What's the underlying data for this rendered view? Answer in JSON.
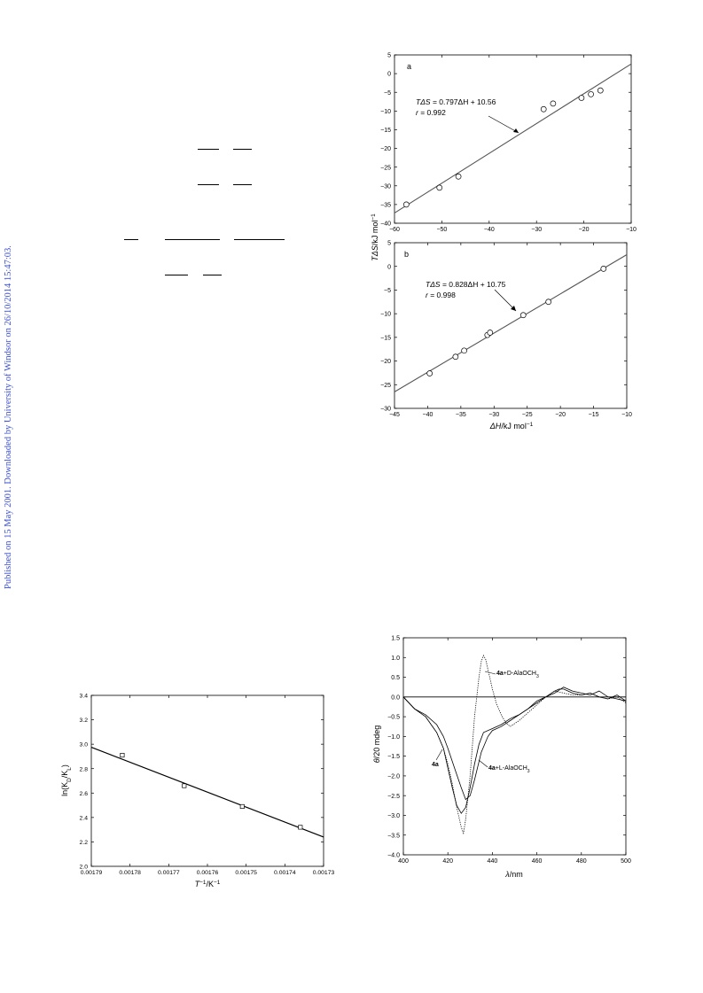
{
  "side_note": "Published on 15 May 2001. Downloaded by University of Windsor on 26/10/2014 15:47:03.",
  "chart_data": [
    {
      "id": "fig-a",
      "type": "scatter",
      "panel_label": "a",
      "xlabel": "",
      "ylabel_parts": [
        "TΔS",
        "/kJ mol",
        "−1"
      ],
      "xlim": [
        -60,
        -10
      ],
      "ylim": [
        -40,
        5
      ],
      "xticks": [
        -60,
        -50,
        -40,
        -30,
        -20,
        -10
      ],
      "yticks": [
        5,
        0,
        -5,
        -10,
        -15,
        -20,
        -25,
        -30,
        -35,
        -40
      ],
      "points": [
        {
          "x": -57.5,
          "y": -35
        },
        {
          "x": -50.5,
          "y": -30.5
        },
        {
          "x": -46.5,
          "y": -27.5
        },
        {
          "x": -28.5,
          "y": -9.5
        },
        {
          "x": -26.5,
          "y": -8
        },
        {
          "x": -20.5,
          "y": -6.5
        },
        {
          "x": -18.5,
          "y": -5.5
        },
        {
          "x": -16.5,
          "y": -4.5
        }
      ],
      "fit": {
        "slope": 0.797,
        "intercept": 10.56
      },
      "equation": {
        "lhs": "TΔS",
        "rhs": " = 0.797ΔH + 10.56",
        "r_label": "r",
        "r_value": " = 0.992"
      }
    },
    {
      "id": "fig-b",
      "type": "scatter",
      "panel_label": "b",
      "xlabel_parts": [
        "ΔH",
        "/kJ mol",
        "−1"
      ],
      "xlim": [
        -45,
        -10
      ],
      "ylim": [
        -30,
        5
      ],
      "xticks": [
        -45,
        -40,
        -35,
        -30,
        -25,
        -20,
        -15,
        -10
      ],
      "yticks": [
        5,
        0,
        -5,
        -10,
        -15,
        -20,
        -25,
        -30
      ],
      "points": [
        {
          "x": -39.7,
          "y": -22.6
        },
        {
          "x": -35.8,
          "y": -19.1
        },
        {
          "x": -34.5,
          "y": -17.8
        },
        {
          "x": -31.0,
          "y": -14.5
        },
        {
          "x": -30.6,
          "y": -14.0
        },
        {
          "x": -25.6,
          "y": -10.3
        },
        {
          "x": -21.8,
          "y": -7.5
        },
        {
          "x": -13.5,
          "y": -0.5
        }
      ],
      "fit": {
        "slope": 0.828,
        "intercept": 10.75
      },
      "equation": {
        "lhs": "TΔS",
        "rhs": " = 0.828ΔH + 10.75",
        "r_label": "r",
        "r_value": " = 0.998"
      }
    },
    {
      "id": "fig-c",
      "type": "scatter",
      "xlabel_parts": [
        "T",
        "−1",
        "/K",
        "−1"
      ],
      "ylabel_parts": [
        "ln(K",
        "D",
        "/K",
        "L",
        ")"
      ],
      "xlim": [
        0.00179,
        0.00173
      ],
      "ylim": [
        2.0,
        3.4
      ],
      "xticks": [
        0.00179,
        0.00178,
        0.00177,
        0.00176,
        0.00175,
        0.00174,
        0.00173
      ],
      "xtick_labels": [
        "0.00179",
        "0.00178",
        "0.00177",
        "0.00176",
        "0.00175",
        "0.00174",
        "0.00173"
      ],
      "yticks": [
        2.0,
        2.2,
        2.4,
        2.6,
        2.8,
        3.0,
        3.2,
        3.4
      ],
      "ytick_labels": [
        "2.0",
        "2.2",
        "2.4",
        "2.6",
        "2.8",
        "3.0",
        "3.2",
        "3.4"
      ],
      "points": [
        {
          "x": 0.001782,
          "y": 2.91
        },
        {
          "x": 0.001766,
          "y": 2.66
        },
        {
          "x": 0.001751,
          "y": 2.49
        },
        {
          "x": 0.001736,
          "y": 2.32
        }
      ],
      "fit_line": [
        {
          "x": 0.00179,
          "y": 2.975
        },
        {
          "x": 0.00173,
          "y": 2.24
        }
      ]
    },
    {
      "id": "fig-d",
      "type": "line",
      "xlabel_parts": [
        "λ",
        "/nm"
      ],
      "ylabel_parts": [
        "θ",
        "/20 mdeg"
      ],
      "xlim": [
        400,
        500
      ],
      "ylim": [
        -4.0,
        1.5
      ],
      "xticks": [
        400,
        420,
        440,
        460,
        480,
        500
      ],
      "yticks": [
        1.5,
        1.0,
        0.5,
        0.0,
        -0.5,
        -1.0,
        -1.5,
        -2.0,
        -2.5,
        -3.0,
        -3.5,
        -4.0
      ],
      "ytick_labels": [
        "1.5",
        "1.0",
        "0.5",
        "0.0",
        "−0.5",
        "−1.0",
        "−1.5",
        "−2.0",
        "−2.5",
        "−3.0",
        "−3.5",
        "−4.0"
      ],
      "series": [
        {
          "name": "4a",
          "style": "solid",
          "x": [
            400,
            405,
            410,
            415,
            418,
            420,
            422,
            424,
            426,
            428,
            430,
            432,
            434,
            436,
            440,
            444,
            448,
            452,
            456,
            460,
            464,
            468,
            470,
            472,
            476,
            480,
            484,
            488,
            492,
            496,
            500
          ],
          "y": [
            0.0,
            -0.3,
            -0.5,
            -0.9,
            -1.3,
            -1.8,
            -2.3,
            -2.75,
            -2.95,
            -2.8,
            -2.3,
            -1.7,
            -1.2,
            -0.9,
            -0.8,
            -0.7,
            -0.55,
            -0.45,
            -0.3,
            -0.1,
            0.0,
            0.15,
            0.2,
            0.2,
            0.1,
            0.05,
            0.1,
            0.0,
            -0.05,
            0.05,
            -0.1
          ]
        },
        {
          "name": "4a+L-AlaOCH3",
          "style": "solid",
          "x": [
            400,
            405,
            410,
            415,
            418,
            420,
            423,
            426,
            428,
            430,
            432,
            435,
            438,
            440,
            444,
            448,
            452,
            456,
            460,
            464,
            468,
            472,
            476,
            480,
            484,
            488,
            492,
            496,
            500
          ],
          "y": [
            0.0,
            -0.3,
            -0.45,
            -0.7,
            -1.0,
            -1.3,
            -1.8,
            -2.3,
            -2.6,
            -2.5,
            -2.1,
            -1.4,
            -1.0,
            -0.85,
            -0.75,
            -0.6,
            -0.45,
            -0.3,
            -0.15,
            0.0,
            0.1,
            0.25,
            0.15,
            0.1,
            0.05,
            0.15,
            0.0,
            -0.05,
            -0.1
          ]
        },
        {
          "name": "4a+D-AlaOCH3",
          "style": "dotted",
          "x": [
            400,
            405,
            410,
            415,
            418,
            420,
            422,
            424,
            426,
            427,
            428,
            430,
            432,
            434,
            435,
            436,
            437,
            438,
            440,
            442,
            444,
            446,
            448,
            452,
            456,
            460,
            464,
            468,
            472,
            476,
            480,
            484,
            488,
            492,
            496,
            500
          ],
          "y": [
            0.0,
            -0.3,
            -0.5,
            -0.9,
            -1.3,
            -1.7,
            -2.2,
            -2.8,
            -3.3,
            -3.45,
            -3.1,
            -2.0,
            -0.5,
            0.5,
            0.9,
            1.05,
            0.95,
            0.7,
            0.2,
            -0.2,
            -0.45,
            -0.65,
            -0.75,
            -0.6,
            -0.4,
            -0.2,
            0.0,
            0.15,
            0.1,
            0.05,
            0.05,
            0.1,
            0.0,
            -0.05,
            0.0,
            -0.15
          ]
        }
      ],
      "zero_line": 0,
      "annotations": {
        "d_label": {
          "bold": "4a",
          "rest": "+D-AlaOCH",
          "sub": "3"
        },
        "a_label": {
          "bold": "4a"
        },
        "l_label": {
          "bold": "4a",
          "rest": "+L-AlaOCH",
          "sub": "3"
        }
      }
    }
  ]
}
